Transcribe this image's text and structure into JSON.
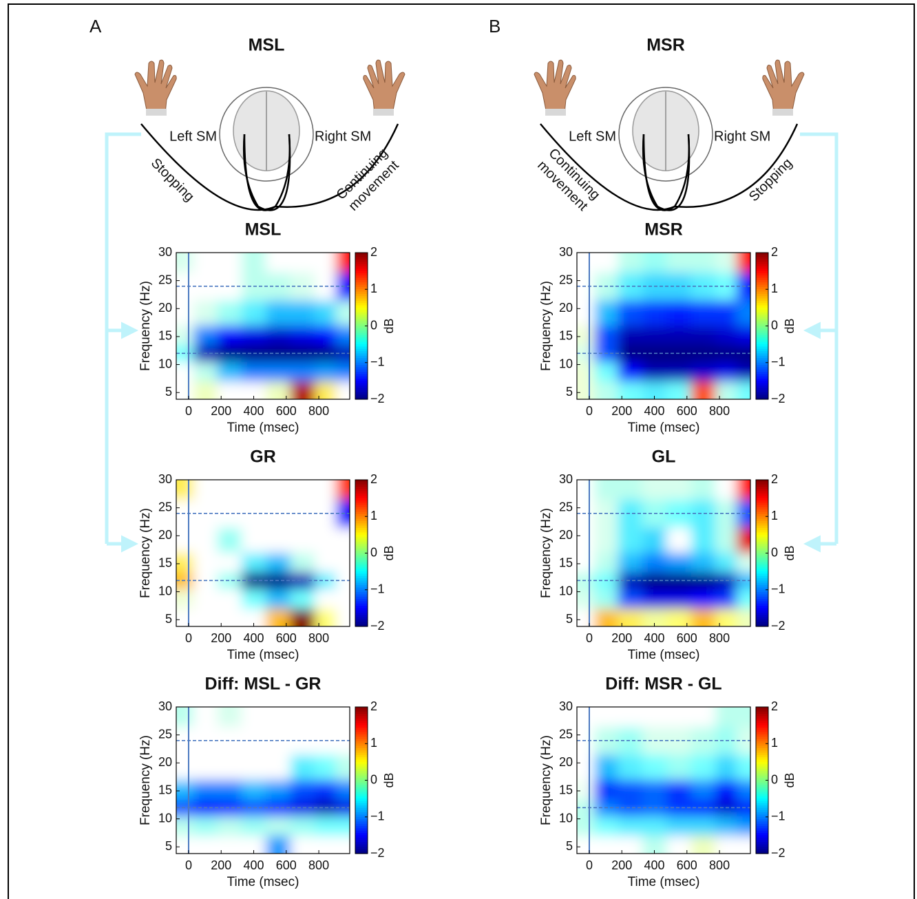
{
  "panels": [
    {
      "letter": "A",
      "title": "MSL",
      "left": "Left SM",
      "right": "Right SM",
      "left_arc": [
        "Stopping"
      ],
      "right_arc": [
        "Continuing",
        "movement"
      ]
    },
    {
      "letter": "B",
      "title": "MSR",
      "left": "Left SM",
      "right": "Right SM",
      "left_arc": [
        "Continuing",
        "movement"
      ],
      "right_arc": [
        "Stopping"
      ]
    }
  ],
  "chart_data": [
    {
      "type": "heatmap",
      "title": "MSL",
      "xlabel": "Time (msec)",
      "ylabel": "Frequency (Hz)",
      "colorbar_label": "dB",
      "x": [
        -40,
        100,
        250,
        400,
        550,
        700,
        850,
        960
      ],
      "y": [
        5,
        9,
        12,
        15,
        19,
        24,
        29
      ],
      "z": [
        [
          0,
          0.3,
          0,
          0,
          0.3,
          1.8,
          0.6,
          0
        ],
        [
          0,
          -0.3,
          -0.8,
          -1,
          -1,
          -1,
          -0.9,
          -1
        ],
        [
          -0.5,
          -1.8,
          -2,
          -2,
          -2,
          -2,
          -2,
          -1.8
        ],
        [
          -0.2,
          -1,
          -1.5,
          -1.6,
          -1.7,
          -1.6,
          -1.5,
          -1
        ],
        [
          0,
          -0.2,
          -0.4,
          -0.6,
          -0.8,
          -0.8,
          -0.7,
          -0.3
        ],
        [
          0,
          0,
          0,
          -0.3,
          -0.3,
          -0.2,
          0,
          -1.5
        ],
        [
          -0.2,
          0,
          0,
          -0.3,
          0,
          0,
          0,
          1.5
        ]
      ],
      "xlim": [
        -76,
        990
      ],
      "ylim": [
        3.8,
        30
      ],
      "xticks": [
        0,
        200,
        400,
        600,
        800
      ],
      "yticks": [
        5,
        10,
        15,
        20,
        25,
        30
      ],
      "clim": [
        -2,
        2
      ],
      "cticks": [
        {
          "value": -2,
          "label": "−2"
        },
        {
          "value": -1,
          "label": "−1"
        },
        0,
        1,
        2
      ],
      "hlines": [
        24,
        12
      ],
      "vline": 0
    },
    {
      "type": "heatmap",
      "title": "GR",
      "xlabel": "Time (msec)",
      "ylabel": "Frequency (Hz)",
      "colorbar_label": "dB",
      "x": [
        -40,
        100,
        250,
        400,
        550,
        700,
        850,
        960
      ],
      "y": [
        5,
        9,
        12,
        15,
        19,
        24,
        29
      ],
      "z": [
        [
          0,
          0,
          0,
          0,
          0.8,
          2,
          0.5,
          0
        ],
        [
          0.2,
          0,
          0,
          -0.5,
          -0.8,
          -0.5,
          0,
          0
        ],
        [
          0.8,
          0,
          -0.4,
          -2,
          -2,
          -1.8,
          -0.6,
          0
        ],
        [
          0.6,
          0,
          0,
          -0.6,
          -0.8,
          -0.3,
          0,
          0
        ],
        [
          0,
          0,
          -0.4,
          0,
          0,
          0,
          0,
          0
        ],
        [
          0,
          0,
          0,
          0,
          0,
          0,
          0,
          -1.5
        ],
        [
          0.6,
          0,
          0,
          0,
          0,
          0,
          0,
          1.3
        ]
      ],
      "xlim": [
        -76,
        990
      ],
      "ylim": [
        3.8,
        30
      ],
      "xticks": [
        0,
        200,
        400,
        600,
        800
      ],
      "yticks": [
        5,
        10,
        15,
        20,
        25,
        30
      ],
      "clim": [
        -2,
        2
      ],
      "cticks": [
        {
          "value": -2,
          "label": "−2"
        },
        {
          "value": -1,
          "label": "−1"
        },
        0,
        1,
        2
      ],
      "hlines": [
        24,
        12
      ],
      "vline": 0
    },
    {
      "type": "heatmap",
      "title": "Diff: MSL - GR",
      "xlabel": "Time (msec)",
      "ylabel": "Frequency (Hz)",
      "colorbar_label": "dB",
      "x": [
        -40,
        100,
        250,
        400,
        550,
        700,
        850,
        960
      ],
      "y": [
        5,
        9,
        12,
        15,
        19,
        24,
        29
      ],
      "z": [
        [
          0,
          0,
          0,
          0,
          -0.9,
          0,
          0,
          0
        ],
        [
          -0.3,
          -0.4,
          -0.3,
          -0.4,
          -0.3,
          -0.4,
          -0.5,
          -0.5
        ],
        [
          -1.2,
          -1.5,
          -1.4,
          -1.2,
          -1.4,
          -1.6,
          -1.8,
          -1.6
        ],
        [
          -0.8,
          -1,
          -1,
          -0.8,
          -0.9,
          -1.2,
          -1.3,
          -1
        ],
        [
          0,
          0,
          0,
          0,
          0,
          -0.6,
          -0.5,
          -0.3
        ],
        [
          0,
          0,
          0,
          0,
          0,
          0,
          0,
          0
        ],
        [
          -0.3,
          0,
          -0.2,
          0,
          0,
          0,
          0,
          0
        ]
      ],
      "xlim": [
        -76,
        990
      ],
      "ylim": [
        3.8,
        30
      ],
      "xticks": [
        0,
        200,
        400,
        600,
        800
      ],
      "yticks": [
        5,
        10,
        15,
        20,
        25,
        30
      ],
      "clim": [
        -2,
        2
      ],
      "cticks": [
        {
          "value": -2,
          "label": "−2"
        },
        {
          "value": -1,
          "label": "−1"
        },
        0,
        1,
        2
      ],
      "hlines": [
        24,
        12
      ],
      "vline": 0
    },
    {
      "type": "heatmap",
      "title": "MSR",
      "xlabel": "Time (msec)",
      "ylabel": "Frequency (Hz)",
      "colorbar_label": "dB",
      "x": [
        -40,
        100,
        250,
        400,
        550,
        700,
        850,
        960
      ],
      "y": [
        5,
        9,
        12,
        15,
        19,
        24,
        29
      ],
      "z": [
        [
          0.2,
          -0.3,
          -0.5,
          -0.6,
          -0.5,
          1.2,
          -0.3,
          -0.5
        ],
        [
          0.2,
          -0.5,
          -1.5,
          -1.8,
          -1.8,
          -1.7,
          -1.6,
          -1.8
        ],
        [
          -0.2,
          -1.2,
          -2,
          -2,
          -2,
          -2,
          -2,
          -2
        ],
        [
          0.2,
          -1.2,
          -1.8,
          -1.8,
          -1.8,
          -1.8,
          -1.7,
          -1.6
        ],
        [
          0,
          -0.8,
          -1.2,
          -1.3,
          -1.4,
          -1.3,
          -1.3,
          -1
        ],
        [
          0,
          -0.3,
          -0.6,
          -0.7,
          -0.7,
          -0.6,
          -0.5,
          -1.4
        ],
        [
          0,
          0,
          -0.3,
          -0.4,
          -0.3,
          -0.3,
          -0.2,
          1.5
        ]
      ],
      "xlim": [
        -76,
        990
      ],
      "ylim": [
        3.8,
        30
      ],
      "xticks": [
        0,
        200,
        400,
        600,
        800
      ],
      "yticks": [
        5,
        10,
        15,
        20,
        25,
        30
      ],
      "clim": [
        -2,
        2
      ],
      "cticks": [
        {
          "value": -2,
          "label": "−2"
        },
        {
          "value": -1,
          "label": "−1"
        },
        0,
        1,
        2
      ],
      "hlines": [
        24,
        12
      ],
      "vline": 0
    },
    {
      "type": "heatmap",
      "title": "GL",
      "xlabel": "Time (msec)",
      "ylabel": "Frequency (Hz)",
      "colorbar_label": "dB",
      "x": [
        -40,
        100,
        250,
        400,
        550,
        700,
        850,
        960
      ],
      "y": [
        5,
        9,
        12,
        15,
        19,
        24,
        29
      ],
      "z": [
        [
          0,
          0.8,
          0.6,
          0.4,
          0.5,
          0.8,
          0.5,
          0.3
        ],
        [
          -0.2,
          -0.4,
          -1.2,
          -1.6,
          -1.6,
          -1.5,
          -1.3,
          -0.5
        ],
        [
          -0.3,
          -0.5,
          -1.8,
          -2,
          -2,
          -2,
          -1.8,
          -0.8
        ],
        [
          0,
          -0.3,
          -0.8,
          -1,
          -0.9,
          -0.8,
          -0.6,
          -0.2
        ],
        [
          0,
          -0.2,
          -0.6,
          -0.7,
          0,
          -0.6,
          -0.3,
          1.6
        ],
        [
          0,
          -0.2,
          -0.6,
          -0.4,
          -0.5,
          -0.6,
          -0.3,
          -1.2
        ],
        [
          0,
          -0.3,
          -0.3,
          -0.2,
          -0.2,
          -0.3,
          0,
          1.5
        ]
      ],
      "xlim": [
        -76,
        990
      ],
      "ylim": [
        3.8,
        30
      ],
      "xticks": [
        0,
        200,
        400,
        600,
        800
      ],
      "yticks": [
        5,
        10,
        15,
        20,
        25,
        30
      ],
      "clim": [
        -2,
        2
      ],
      "cticks": [
        {
          "value": -2,
          "label": "−2"
        },
        {
          "value": -1,
          "label": "−1"
        },
        0,
        1,
        2
      ],
      "hlines": [
        24,
        12
      ],
      "vline": 0
    },
    {
      "type": "heatmap",
      "title": "Diff: MSR - GL",
      "xlabel": "Time (msec)",
      "ylabel": "Frequency (Hz)",
      "colorbar_label": "dB",
      "x": [
        -40,
        100,
        250,
        400,
        550,
        700,
        850,
        960
      ],
      "y": [
        5,
        9,
        12,
        15,
        19,
        24,
        29
      ],
      "z": [
        [
          0,
          0,
          0,
          -0.3,
          0,
          0.3,
          0,
          0
        ],
        [
          -0.3,
          -0.5,
          -0.6,
          -0.6,
          -0.7,
          -0.7,
          -0.8,
          -0.9
        ],
        [
          -0.3,
          -1,
          -1.2,
          -1.1,
          -1.3,
          -1.4,
          -1.7,
          -1.4
        ],
        [
          -0.1,
          -1.3,
          -1.2,
          -1.1,
          -1.3,
          -1,
          -1.5,
          -1
        ],
        [
          0,
          -0.8,
          -0.6,
          -0.5,
          -0.4,
          -0.5,
          -0.7,
          -0.5
        ],
        [
          0,
          -0.3,
          -0.4,
          -0.2,
          -0.2,
          -0.3,
          -0.4,
          -0.2
        ],
        [
          0,
          0,
          0,
          0,
          0,
          0,
          -0.3,
          -0.3
        ]
      ],
      "xlim": [
        -76,
        990
      ],
      "ylim": [
        3.8,
        30
      ],
      "xticks": [
        0,
        200,
        400,
        600,
        800
      ],
      "yticks": [
        5,
        10,
        15,
        20,
        25,
        30
      ],
      "clim": [
        -2,
        2
      ],
      "cticks": [
        {
          "value": -2,
          "label": "−2"
        },
        {
          "value": -1,
          "label": "−1"
        },
        0,
        1,
        2
      ],
      "hlines": [
        24,
        12
      ],
      "vline": 0
    }
  ]
}
